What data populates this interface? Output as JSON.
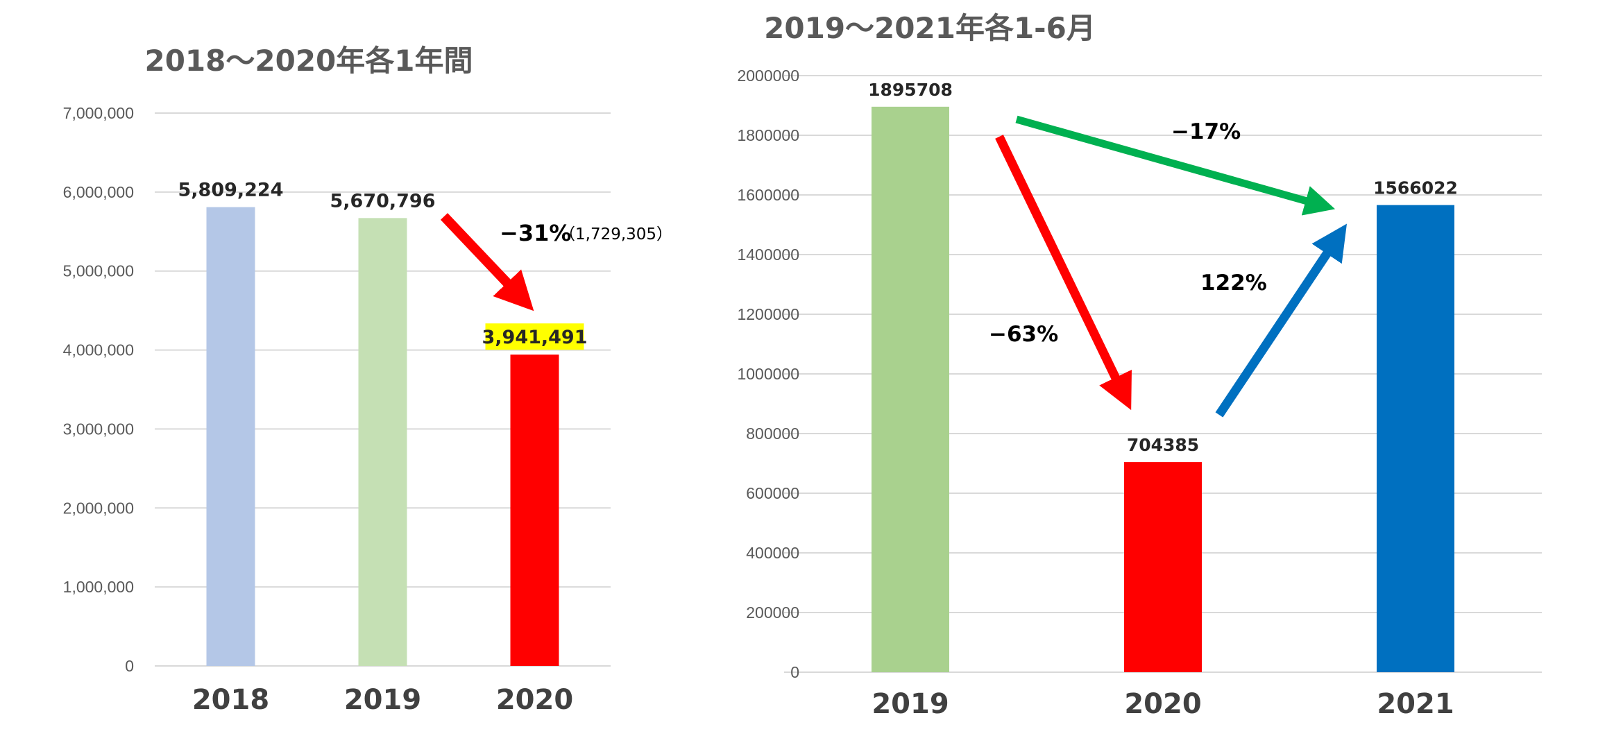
{
  "chart_data": [
    {
      "type": "bar",
      "title": "2018～2020年各1年間",
      "categories": [
        "2018",
        "2019",
        "2020"
      ],
      "values": [
        5809224,
        5670796,
        3941491
      ],
      "data_labels": [
        "5,809,224",
        "5,670,796",
        "3,941,491"
      ],
      "colors": [
        "#b4c7e7",
        "#c5e0b4",
        "#ff0000"
      ],
      "highlight_label_color": "#ffff00",
      "ylim": [
        0,
        7000000
      ],
      "yticks": [
        "0",
        "1,000,000",
        "2,000,000",
        "3,000,000",
        "4,000,000",
        "5,000,000",
        "6,000,000",
        "7,000,000"
      ],
      "grid": true,
      "annotations": [
        {
          "text": "−31%",
          "subtext": "（1,729,305）",
          "arrow_color": "#ff0000"
        }
      ]
    },
    {
      "type": "bar",
      "title": "2019～2021年各1-6月",
      "categories": [
        "2019",
        "2020",
        "2021"
      ],
      "values": [
        1895708,
        704385,
        1566022
      ],
      "data_labels": [
        "1895708",
        "704385",
        "1566022"
      ],
      "colors": [
        "#a9d18e",
        "#ff0000",
        "#0070c0"
      ],
      "ylim": [
        0,
        2000000
      ],
      "yticks": [
        "0",
        "200000",
        "400000",
        "600000",
        "800000",
        "1000000",
        "1200000",
        "1400000",
        "1600000",
        "1800000",
        "2000000"
      ],
      "grid": true,
      "annotations": [
        {
          "text": "−17%",
          "arrow_color": "#00b050"
        },
        {
          "text": "−63%",
          "arrow_color": "#ff0000"
        },
        {
          "text": "122%",
          "arrow_color": "#0070c0"
        }
      ]
    }
  ]
}
